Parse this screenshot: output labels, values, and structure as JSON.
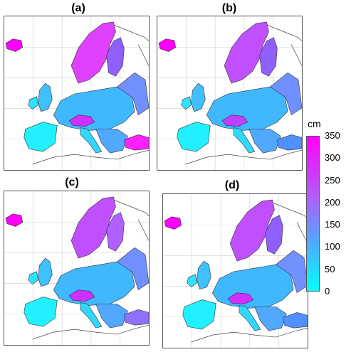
{
  "panels": [
    {
      "id": "a",
      "label": "(a)"
    },
    {
      "id": "b",
      "label": "(b)"
    },
    {
      "id": "c",
      "label": "(c)"
    },
    {
      "id": "d",
      "label": "(d)"
    }
  ],
  "colorbar": {
    "unit": "cm",
    "ticks": [
      "350",
      "300",
      "250",
      "200",
      "150",
      "100",
      "50",
      "0"
    ],
    "range": [
      0,
      350
    ],
    "color_min": "#00ffff",
    "color_max": "#ff00ff"
  }
}
